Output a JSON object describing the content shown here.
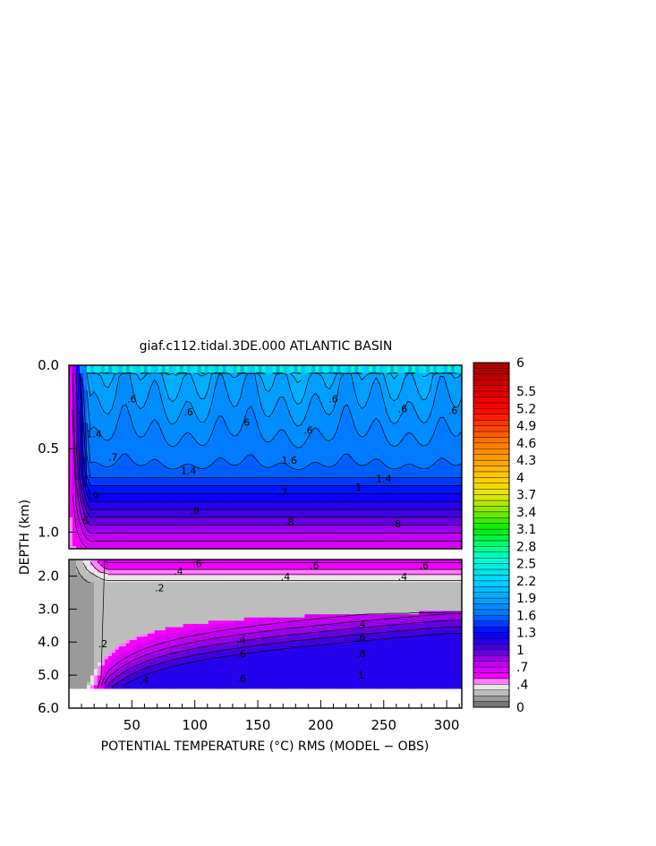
{
  "chart_data": {
    "type": "heatmap",
    "title": "giaf.c112.tidal.3DE.000 ATLANTIC BASIN",
    "xlabel": "POTENTIAL TEMPERATURE (°C) RMS (MODEL − OBS)",
    "ylabel": "DEPTH (km)",
    "xlim": [
      0,
      312
    ],
    "x_ticks": [
      "50",
      "100",
      "150",
      "200",
      "250",
      "300"
    ],
    "x_tick_values": [
      50,
      100,
      150,
      200,
      250,
      300
    ],
    "upper_panel": {
      "ylim": [
        0.0,
        1.1
      ],
      "y_ticks": [
        "0.0",
        "0.5",
        "1.0"
      ],
      "y_tick_values": [
        0.0,
        0.5,
        1.0
      ]
    },
    "lower_panel": {
      "ylim": [
        1.5,
        6.0
      ],
      "y_ticks": [
        "2.0",
        "3.0",
        "4.0",
        "5.0",
        "6.0"
      ],
      "y_tick_values": [
        2.0,
        3.0,
        4.0,
        5.0,
        6.0
      ],
      "seafloor_depth": 5.4
    },
    "colorbar": {
      "min": 0,
      "max": 6,
      "labels": [
        "6",
        "5.5",
        "5.2",
        "4.9",
        "4.6",
        "4.3",
        "4",
        "3.7",
        "3.4",
        "3.1",
        "2.8",
        "2.5",
        "2.2",
        "1.9",
        "1.6",
        "1.3",
        "1",
        ".7",
        ".4",
        "0"
      ],
      "label_values": [
        6,
        5.5,
        5.2,
        4.9,
        4.6,
        4.3,
        4,
        3.7,
        3.4,
        3.1,
        2.8,
        2.5,
        2.2,
        1.9,
        1.6,
        1.3,
        1,
        0.7,
        0.4,
        0
      ],
      "stops": [
        {
          "v": 0.0,
          "c": "#666666"
        },
        {
          "v": 0.15,
          "c": "#9a9a9a"
        },
        {
          "v": 0.3,
          "c": "#cfcfcf"
        },
        {
          "v": 0.4,
          "c": "#ffffff"
        },
        {
          "v": 0.5,
          "c": "#ff00ff"
        },
        {
          "v": 0.8,
          "c": "#b400f0"
        },
        {
          "v": 1.0,
          "c": "#4b00d8"
        },
        {
          "v": 1.3,
          "c": "#0000ff"
        },
        {
          "v": 1.6,
          "c": "#0072ff"
        },
        {
          "v": 1.9,
          "c": "#00a8ff"
        },
        {
          "v": 2.2,
          "c": "#00d2ff"
        },
        {
          "v": 2.6,
          "c": "#00ffd0"
        },
        {
          "v": 2.8,
          "c": "#00ff80"
        },
        {
          "v": 3.1,
          "c": "#00ee00"
        },
        {
          "v": 3.4,
          "c": "#7ee800"
        },
        {
          "v": 3.7,
          "c": "#e6e600"
        },
        {
          "v": 4.0,
          "c": "#ffcc00"
        },
        {
          "v": 4.3,
          "c": "#ffa000"
        },
        {
          "v": 4.6,
          "c": "#ff7800"
        },
        {
          "v": 4.9,
          "c": "#ff4000"
        },
        {
          "v": 5.2,
          "c": "#ff0000"
        },
        {
          "v": 5.5,
          "c": "#e00000"
        },
        {
          "v": 6.0,
          "c": "#a00000"
        }
      ]
    },
    "contour_labels": [
      {
        "panel": "upper",
        "x": 50,
        "y": 0.2,
        "text": ".6"
      },
      {
        "panel": "upper",
        "x": 95,
        "y": 0.28,
        "text": ".6"
      },
      {
        "panel": "upper",
        "x": 140,
        "y": 0.34,
        "text": ".6"
      },
      {
        "panel": "upper",
        "x": 190,
        "y": 0.39,
        "text": ".6"
      },
      {
        "panel": "upper",
        "x": 210,
        "y": 0.2,
        "text": ".6"
      },
      {
        "panel": "upper",
        "x": 265,
        "y": 0.26,
        "text": ".6"
      },
      {
        "panel": "upper",
        "x": 305,
        "y": 0.27,
        "text": ".6"
      },
      {
        "panel": "upper",
        "x": 175,
        "y": 0.57,
        "text": "1.6"
      },
      {
        "panel": "upper",
        "x": 95,
        "y": 0.63,
        "text": "1.4"
      },
      {
        "panel": "upper",
        "x": 250,
        "y": 0.68,
        "text": "1.4"
      },
      {
        "panel": "upper",
        "x": 20,
        "y": 0.41,
        "text": "1.4"
      },
      {
        "panel": "upper",
        "x": 35,
        "y": 0.55,
        "text": ".7"
      },
      {
        "panel": "upper",
        "x": 170,
        "y": 0.76,
        "text": ".7"
      },
      {
        "panel": "upper",
        "x": 230,
        "y": 0.73,
        "text": "1"
      },
      {
        "panel": "upper",
        "x": 20,
        "y": 0.78,
        "text": ".9"
      },
      {
        "panel": "upper",
        "x": 100,
        "y": 0.87,
        "text": ".8"
      },
      {
        "panel": "upper",
        "x": 175,
        "y": 0.94,
        "text": ".8"
      },
      {
        "panel": "upper",
        "x": 260,
        "y": 0.95,
        "text": ".8"
      },
      {
        "panel": "upper",
        "x": 12,
        "y": 0.93,
        "text": ".6"
      },
      {
        "panel": "lower",
        "x": 102,
        "y": 1.62,
        "text": ".6"
      },
      {
        "panel": "lower",
        "x": 195,
        "y": 1.68,
        "text": ".6"
      },
      {
        "panel": "lower",
        "x": 282,
        "y": 1.68,
        "text": ".6"
      },
      {
        "panel": "lower",
        "x": 87,
        "y": 1.85,
        "text": ".4"
      },
      {
        "panel": "lower",
        "x": 172,
        "y": 2.02,
        "text": ".4"
      },
      {
        "panel": "lower",
        "x": 265,
        "y": 2.02,
        "text": ".4"
      },
      {
        "panel": "lower",
        "x": 72,
        "y": 2.35,
        "text": ".2"
      },
      {
        "panel": "lower",
        "x": 27,
        "y": 4.05,
        "text": ".2"
      },
      {
        "panel": "lower",
        "x": 60,
        "y": 5.15,
        "text": ".4"
      },
      {
        "panel": "lower",
        "x": 137,
        "y": 3.92,
        "text": ".4"
      },
      {
        "panel": "lower",
        "x": 232,
        "y": 3.45,
        "text": ".4"
      },
      {
        "panel": "lower",
        "x": 137,
        "y": 4.35,
        "text": ".6"
      },
      {
        "panel": "lower",
        "x": 232,
        "y": 3.85,
        "text": ".6"
      },
      {
        "panel": "lower",
        "x": 232,
        "y": 4.35,
        "text": ".8"
      },
      {
        "panel": "lower",
        "x": 137,
        "y": 5.1,
        "text": ".6"
      },
      {
        "panel": "lower",
        "x": 232,
        "y": 5.0,
        "text": "1"
      }
    ]
  }
}
